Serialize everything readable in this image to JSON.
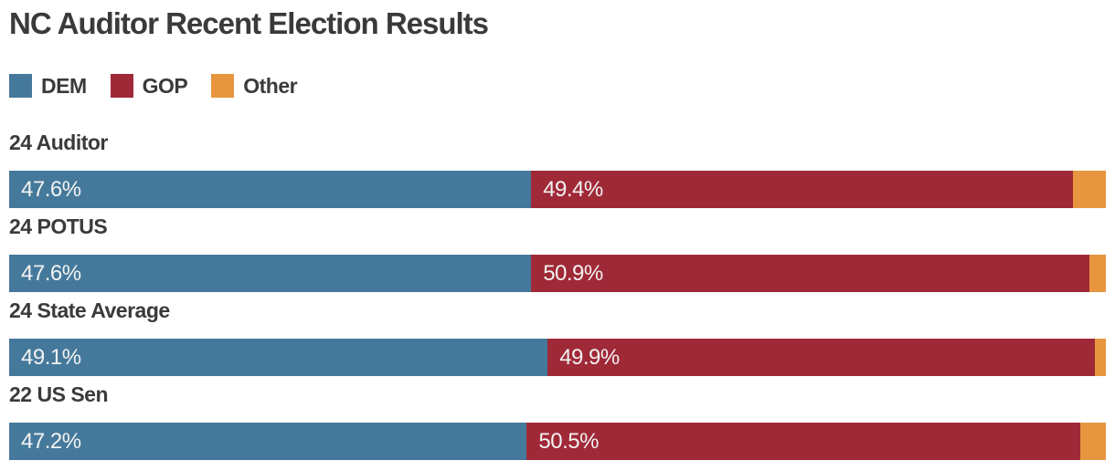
{
  "title": "NC Auditor Recent Election Results",
  "colors": {
    "dem": "#45799B",
    "gop": "#A02937",
    "other": "#E8953F",
    "heading_text": "#3A3A3A",
    "bar_label_text": "#F2F2F2",
    "background": "#FFFFFF"
  },
  "legend": {
    "position": "top",
    "items": [
      {
        "label": "DEM",
        "color": "#45799B"
      },
      {
        "label": "GOP",
        "color": "#A02937"
      },
      {
        "label": "Other",
        "color": "#E8953F"
      }
    ]
  },
  "chart_data": {
    "type": "bar",
    "orientation": "horizontal",
    "stacked": true,
    "normalized_total": 100,
    "title": "NC Auditor Recent Election Results",
    "categories": [
      "24 Auditor",
      "24 POTUS",
      "24 State Average",
      "22 US Sen"
    ],
    "series": [
      {
        "name": "DEM",
        "color": "#45799B",
        "values": [
          47.6,
          47.6,
          49.1,
          47.2
        ],
        "data_labels": [
          "47.6%",
          "47.6%",
          "49.1%",
          "47.2%"
        ]
      },
      {
        "name": "GOP",
        "color": "#A02937",
        "values": [
          49.4,
          50.9,
          49.9,
          50.5
        ],
        "data_labels": [
          "49.4%",
          "50.9%",
          "49.9%",
          "50.5%"
        ]
      },
      {
        "name": "Other",
        "color": "#E8953F",
        "values": [
          3.0,
          1.5,
          1.0,
          2.3
        ],
        "data_labels": [
          "",
          "",
          "",
          ""
        ]
      }
    ],
    "xlabel": "",
    "ylabel": "",
    "axis_ticks": "none",
    "grid": false,
    "legend_position": "top"
  }
}
